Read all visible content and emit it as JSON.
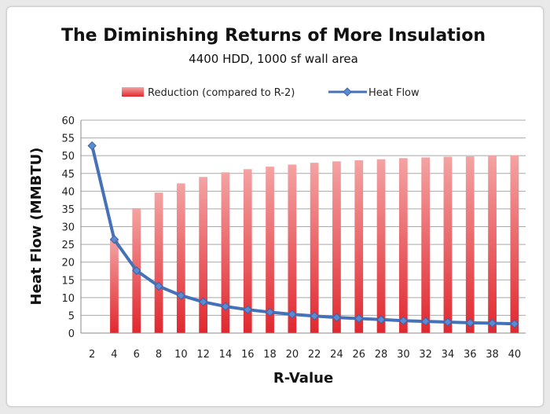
{
  "chart_data": {
    "type": "bar+line",
    "title": "The Diminishing Returns of More Insulation",
    "subtitle": "4400 HDD, 1000 sf wall area",
    "xlabel": "R-Value",
    "ylabel": "Heat Flow (MMBTU)",
    "ylim": [
      0,
      60
    ],
    "yticks": [
      0,
      5,
      10,
      15,
      20,
      25,
      30,
      35,
      40,
      45,
      50,
      55,
      60
    ],
    "grid": true,
    "legend_position": "top",
    "categories": [
      "2",
      "4",
      "6",
      "8",
      "10",
      "12",
      "14",
      "16",
      "18",
      "20",
      "22",
      "24",
      "26",
      "28",
      "30",
      "32",
      "34",
      "36",
      "38",
      "40"
    ],
    "series": [
      {
        "name": "Reduction (compared to R-2)",
        "type": "bar",
        "color": "#e8474c",
        "values": [
          0,
          26.4,
          35.2,
          39.6,
          42.2,
          44.0,
          45.3,
          46.2,
          46.9,
          47.5,
          48.0,
          48.4,
          48.7,
          49.0,
          49.3,
          49.5,
          49.7,
          49.8,
          50.0,
          50.1
        ]
      },
      {
        "name": "Heat Flow",
        "type": "line",
        "color": "#4471b8",
        "values": [
          52.8,
          26.4,
          17.6,
          13.2,
          10.6,
          8.8,
          7.5,
          6.6,
          5.9,
          5.3,
          4.8,
          4.4,
          4.1,
          3.8,
          3.5,
          3.3,
          3.1,
          2.9,
          2.8,
          2.6
        ]
      }
    ]
  }
}
